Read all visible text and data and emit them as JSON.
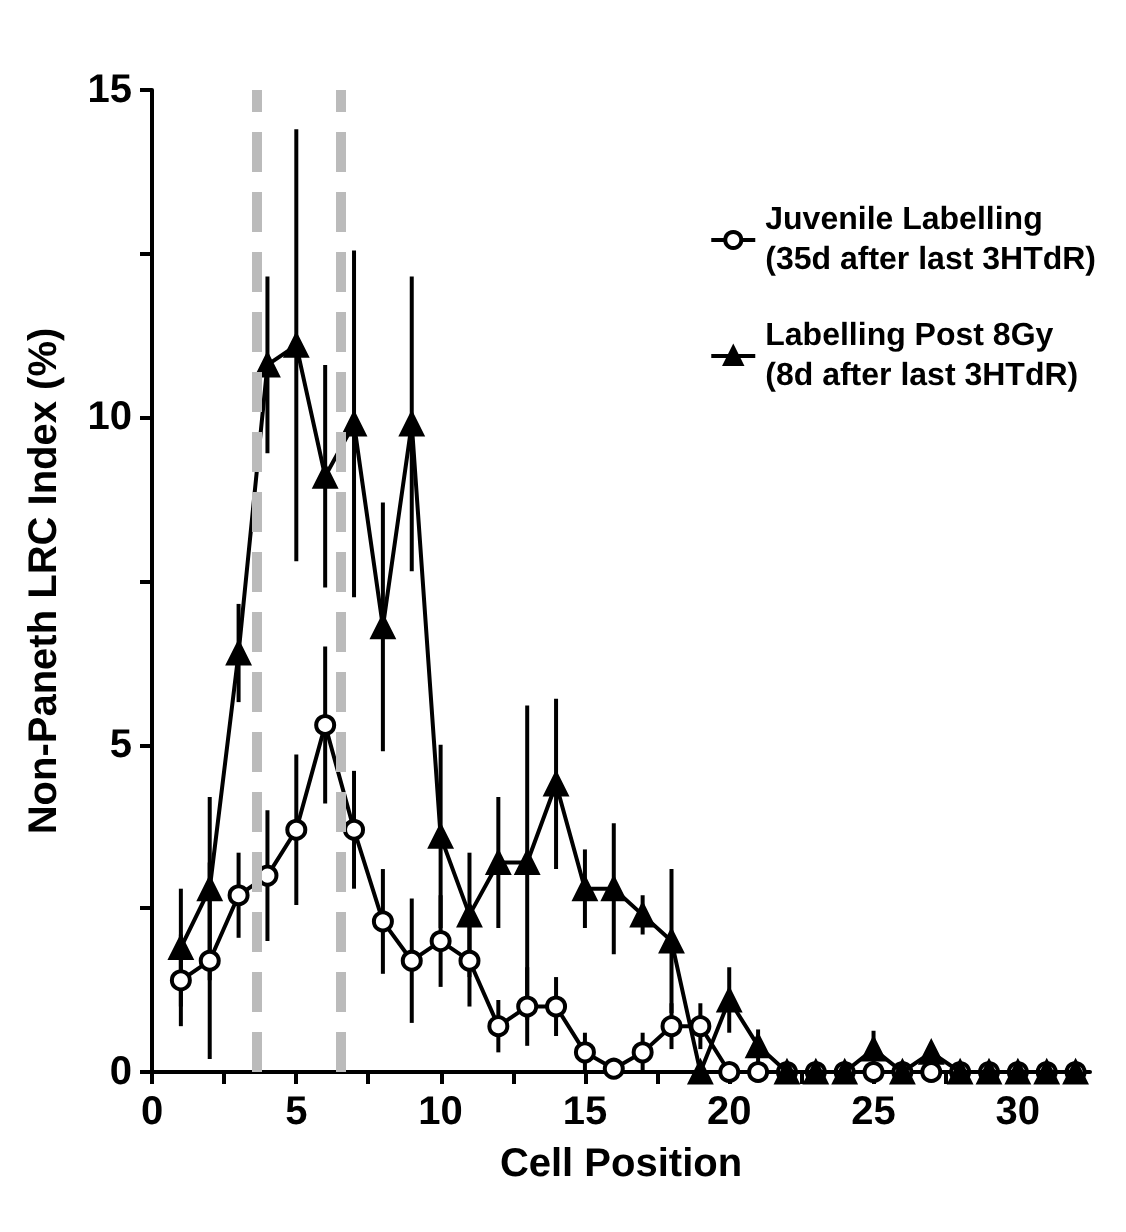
{
  "chart_data": {
    "type": "line",
    "xlabel": "Cell Position",
    "ylabel": "Non-Paneth LRC Index (%)",
    "x": [
      1,
      2,
      3,
      4,
      5,
      6,
      7,
      8,
      9,
      10,
      11,
      12,
      13,
      14,
      15,
      16,
      17,
      18,
      19,
      20,
      21,
      22,
      23,
      24,
      25,
      26,
      27,
      28,
      29,
      30,
      31,
      32
    ],
    "series": [
      {
        "name": "Juvenile Labelling\n(35d after last 3HTdR)",
        "color": "#000000",
        "marker": "circle",
        "values": [
          1.4,
          1.7,
          2.7,
          3.0,
          3.7,
          5.3,
          3.7,
          2.3,
          1.7,
          2.0,
          1.7,
          0.7,
          1.0,
          1.0,
          0.3,
          0.05,
          0.3,
          0.7,
          0.7,
          0,
          0,
          0,
          0,
          0,
          0,
          0,
          0,
          0,
          0,
          0,
          0,
          0
        ],
        "errors": [
          0.7,
          1.5,
          0.65,
          1.0,
          1.15,
          1.2,
          0.9,
          0.8,
          0.95,
          0.7,
          0.7,
          0.4,
          0.6,
          0.45,
          0.3,
          null,
          0.3,
          0.35,
          0.35,
          null,
          null,
          null,
          null,
          null,
          null,
          null,
          null,
          null,
          null,
          null,
          null,
          null
        ]
      },
      {
        "name": "Labelling Post 8Gy\n(8d after last 3HTdR)",
        "color": "#000000",
        "marker": "triangle",
        "values": [
          1.9,
          2.8,
          6.4,
          10.8,
          11.1,
          9.1,
          9.9,
          6.8,
          9.9,
          3.6,
          2.4,
          3.2,
          3.2,
          4.4,
          2.8,
          2.8,
          2.4,
          2.0,
          0,
          1.1,
          0.4,
          0,
          0,
          0,
          0.35,
          0,
          0.3,
          0,
          0,
          0,
          0,
          0
        ],
        "errors": [
          0.9,
          1.4,
          0.75,
          1.35,
          3.3,
          1.7,
          2.65,
          1.9,
          2.25,
          1.4,
          0.95,
          1.0,
          2.4,
          1.3,
          0.6,
          1.0,
          0.3,
          1.1,
          null,
          0.5,
          0.25,
          null,
          null,
          null,
          0.28,
          0.1,
          null,
          null,
          null,
          null,
          null,
          null
        ]
      }
    ],
    "xlim": [
      0,
      32.5
    ],
    "xticks": [
      0,
      {
        "value": 2.5,
        "label": null
      },
      5,
      {
        "value": 7.5,
        "label": null
      },
      10,
      {
        "value": 12.5,
        "label": null
      },
      15,
      {
        "value": 17.5,
        "label": null
      },
      20,
      {
        "value": 22.5,
        "label": null
      },
      25,
      {
        "value": 27.5,
        "label": null
      },
      30
    ],
    "ylim": [
      0,
      15
    ],
    "yticks": [
      0,
      {
        "value": 2.5,
        "label": null
      },
      5,
      {
        "value": 7.5,
        "label": null
      },
      10,
      {
        "value": 12.5,
        "label": null
      },
      15
    ],
    "ref_lines": [
      {
        "axis": "x",
        "value": 3.6,
        "color": "#bbbbbb",
        "line_style": "dashed"
      },
      {
        "axis": "x",
        "value": 6.5,
        "color": "#bbbbbb",
        "line_style": "dashed"
      }
    ],
    "legend": "top right",
    "grid": false
  }
}
